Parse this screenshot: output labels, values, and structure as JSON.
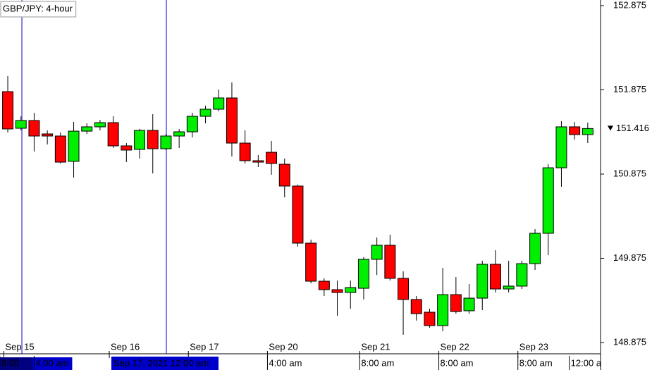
{
  "chart_data": {
    "type": "candlestick",
    "title": "GBP/JPY: 4-hour",
    "up_color": "#00ee00",
    "down_color": "#ff0000",
    "open": [
      151.854,
      151.419,
      151.511,
      151.352,
      151.327,
      151.026,
      151.385,
      151.436,
      151.486,
      151.21,
      151.168,
      151.394,
      151.176,
      151.327,
      151.377,
      151.561,
      151.645,
      151.779,
      151.243,
      151.034,
      151.134,
      150.992,
      150.733,
      150.055,
      149.603,
      149.503,
      149.469,
      149.519,
      149.863,
      150.03,
      149.637,
      149.386,
      149.235,
      149.076,
      149.444,
      149.252,
      149.402,
      149.804,
      149.511,
      149.545,
      149.812,
      150.172,
      150.95,
      151.436,
      151.344
    ],
    "high": [
      152.038,
      151.561,
      151.603,
      151.394,
      151.369,
      151.494,
      151.478,
      151.519,
      151.561,
      151.243,
      151.411,
      151.586,
      151.352,
      151.411,
      151.603,
      151.687,
      151.879,
      151.963,
      151.394,
      151.101,
      151.268,
      151.059,
      150.75,
      150.097,
      149.637,
      149.611,
      149.611,
      149.888,
      150.122,
      150.155,
      149.72,
      149.427,
      149.277,
      149.762,
      149.653,
      149.57,
      149.846,
      149.971,
      149.846,
      149.846,
      150.222,
      150.992,
      151.503,
      151.494,
      151.486
    ],
    "low": [
      151.369,
      151.394,
      151.143,
      151.227,
      151.001,
      150.833,
      151.352,
      151.394,
      151.185,
      151.017,
      151.059,
      150.883,
      151.16,
      151.185,
      151.31,
      151.478,
      151.62,
      151.084,
      151.001,
      150.959,
      150.867,
      150.599,
      150.013,
      149.578,
      149.427,
      149.193,
      149.277,
      149.386,
      149.678,
      149.611,
      148.967,
      149.135,
      149.051,
      149.009,
      149.218,
      149.218,
      149.26,
      149.469,
      149.469,
      149.511,
      149.737,
      149.913,
      150.724,
      151.285,
      151.243
    ],
    "close": [
      151.411,
      151.511,
      151.327,
      151.327,
      151.017,
      151.385,
      151.436,
      151.486,
      151.21,
      151.16,
      151.394,
      151.176,
      151.327,
      151.377,
      151.561,
      151.645,
      151.779,
      151.243,
      151.034,
      151.017,
      151.001,
      150.733,
      150.055,
      149.603,
      149.503,
      149.469,
      149.528,
      149.863,
      150.03,
      149.637,
      149.386,
      149.218,
      149.076,
      149.444,
      149.243,
      149.402,
      149.804,
      149.511,
      149.545,
      149.812,
      150.172,
      150.95,
      151.436,
      151.344,
      151.416
    ],
    "xlim": [
      -0.59,
      44.97
    ],
    "xticks": [
      {
        "value": -0.3,
        "label": "Sep 15"
      },
      {
        "value": 7.7,
        "label": "Sep 16"
      },
      {
        "value": 13.7,
        "label": "Sep 17"
      },
      {
        "value": 19.7,
        "label": "Sep 20"
      },
      {
        "value": 26.7,
        "label": "Sep 21"
      },
      {
        "value": 32.7,
        "label": "Sep 22"
      },
      {
        "value": 38.7,
        "label": "Sep 23"
      }
    ],
    "time_labels": [
      {
        "value": -0.6,
        "label": "8:00"
      },
      {
        "value": 2.0,
        "label": "4:00 am"
      },
      {
        "value": 19.7,
        "label": "4:00 am"
      },
      {
        "value": 26.7,
        "label": "8:00 am"
      },
      {
        "value": 32.7,
        "label": "8:00 am"
      },
      {
        "value": 38.7,
        "label": "8:00 am"
      },
      {
        "value": 42.6,
        "label": "12:00 a"
      }
    ],
    "cursor_lines": [
      {
        "x": 1.07
      },
      {
        "x": 12.03,
        "label": "Sep 17, 2021 12:00 am"
      }
    ],
    "ylim": [
      148.758,
      152.942
    ],
    "yticks": [
      148.875,
      149.875,
      150.875,
      151.875,
      152.875
    ],
    "last_price": 151.416
  }
}
